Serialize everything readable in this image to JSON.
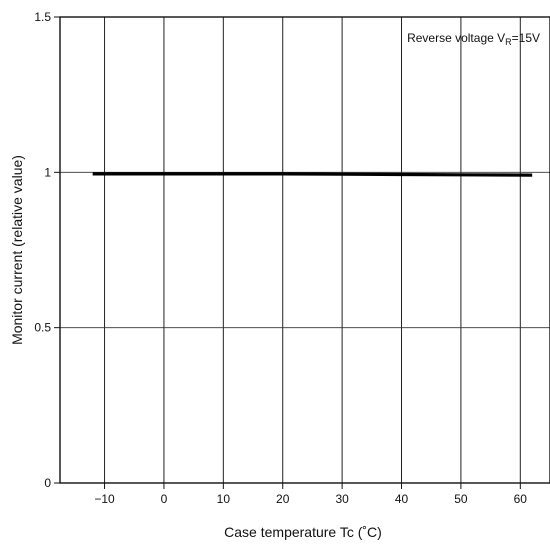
{
  "chart_data": {
    "type": "line",
    "xlabel": "Case temperature Tc (˚C)",
    "ylabel": "Monitor current (relative value)",
    "annotation": {
      "prefix": "Reverse voltage V",
      "subscript": "R",
      "suffix": "=15V"
    },
    "xlim": [
      -17.5,
      65
    ],
    "ylim": [
      0,
      1.5
    ],
    "x_ticks": [
      -10,
      0,
      10,
      20,
      30,
      40,
      50,
      60
    ],
    "x_tick_labels": [
      "−10",
      "0",
      "10",
      "20",
      "30",
      "40",
      "50",
      "60"
    ],
    "y_ticks": [
      0,
      0.5,
      1,
      1.5
    ],
    "y_tick_labels": [
      "0",
      "0.5",
      "1",
      "1.5"
    ],
    "grid": true,
    "series": [
      {
        "x": [
          -12,
          0,
          10,
          20,
          30,
          40,
          50,
          62
        ],
        "y": [
          0.995,
          0.995,
          0.995,
          0.995,
          0.994,
          0.993,
          0.992,
          0.991
        ]
      }
    ]
  }
}
